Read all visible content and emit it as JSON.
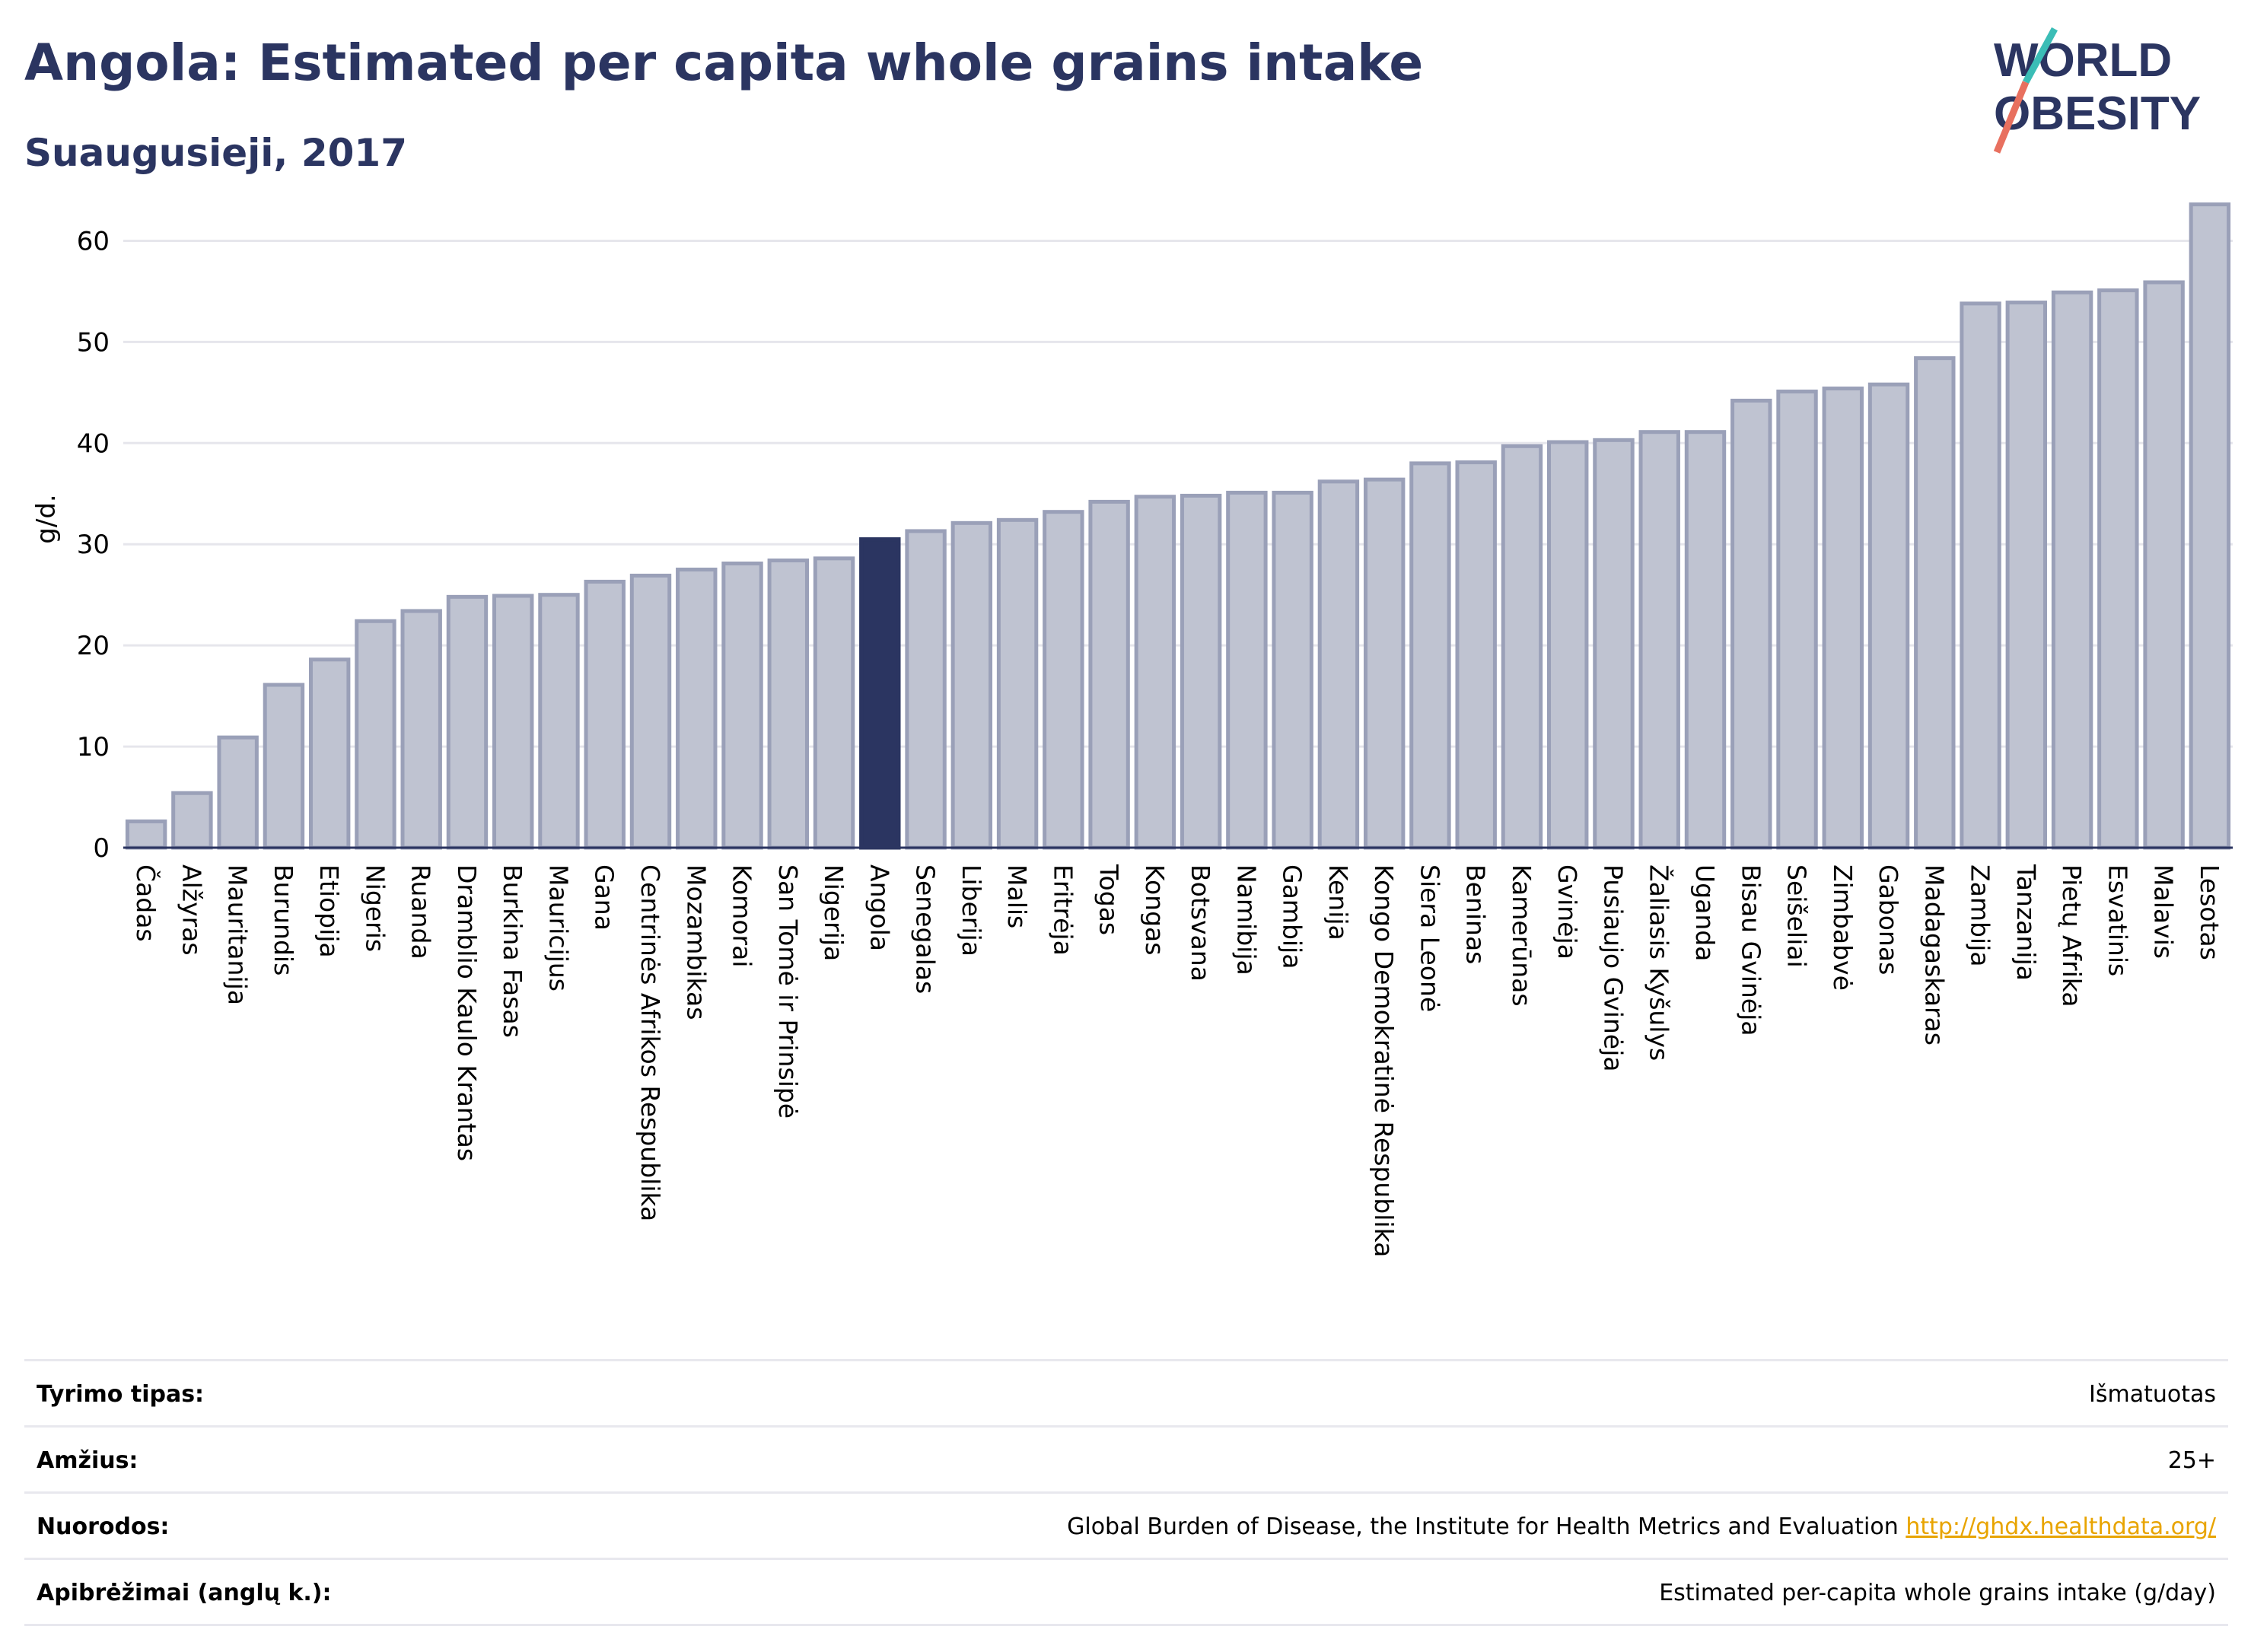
{
  "title": "Angola: Estimated per capita whole grains intake",
  "subtitle": "Suaugusieji, 2017",
  "logo": {
    "line1": "WORLD",
    "line2": "OBESITY"
  },
  "colors": {
    "bar": "#bfc3d1",
    "bar_stroke": "#9aa0b8",
    "highlight": "#2b3561",
    "title": "#2b3561"
  },
  "chart_data": {
    "type": "bar",
    "ylabel": "g/d.",
    "ylim": [
      0,
      65
    ],
    "yticks": [
      0,
      10,
      20,
      30,
      40,
      50,
      60
    ],
    "highlight": "Angola",
    "categories": [
      "Čadas",
      "Alžyras",
      "Mauritanija",
      "Burundis",
      "Etiopija",
      "Nigeris",
      "Ruanda",
      "Dramblio Kaulo Krantas",
      "Burkina Fasas",
      "Mauricijus",
      "Gana",
      "Centrinės Afrikos Respublika",
      "Mozambikas",
      "Komorai",
      "San Tomė ir Prinsipė",
      "Nigerija",
      "Angola",
      "Senegalas",
      "Liberija",
      "Malis",
      "Eritrėja",
      "Togas",
      "Kongas",
      "Botsvana",
      "Namibija",
      "Gambija",
      "Kenija",
      "Kongo Demokratinė Respublika",
      "Siera Leonė",
      "Beninas",
      "Kamerūnas",
      "Gvinėja",
      "Pusiaujo Gvinėja",
      "Žaliasis Kyšulys",
      "Uganda",
      "Bisau Gvinėja",
      "Seišeliai",
      "Zimbabvė",
      "Gabonas",
      "Madagaskaras",
      "Zambija",
      "Tanzanija",
      "Pietų Afrika",
      "Esvatinis",
      "Malavis",
      "Lesotas"
    ],
    "values": [
      2.6,
      5.4,
      10.9,
      16.1,
      18.6,
      22.4,
      23.4,
      24.8,
      24.9,
      25.0,
      26.3,
      26.9,
      27.5,
      28.1,
      28.4,
      28.6,
      30.5,
      31.3,
      32.1,
      32.4,
      33.2,
      34.2,
      34.7,
      34.8,
      35.1,
      35.1,
      36.2,
      36.4,
      38.0,
      38.1,
      39.7,
      40.1,
      40.3,
      41.1,
      41.1,
      44.2,
      45.1,
      45.4,
      45.8,
      48.4,
      53.8,
      53.9,
      54.9,
      55.1,
      55.9,
      63.6
    ]
  },
  "info": [
    {
      "label": "Tyrimo tipas:",
      "value": "Išmatuotas"
    },
    {
      "label": "Amžius:",
      "value": "25+"
    },
    {
      "label": "Nuorodos:",
      "value": "Global Burden of Disease, the Institute for Health Metrics and Evaluation",
      "link": "http://ghdx.healthdata.org/"
    },
    {
      "label": "Apibrėžimai (anglų k.):",
      "value": "Estimated per-capita whole grains intake (g/day)"
    }
  ]
}
